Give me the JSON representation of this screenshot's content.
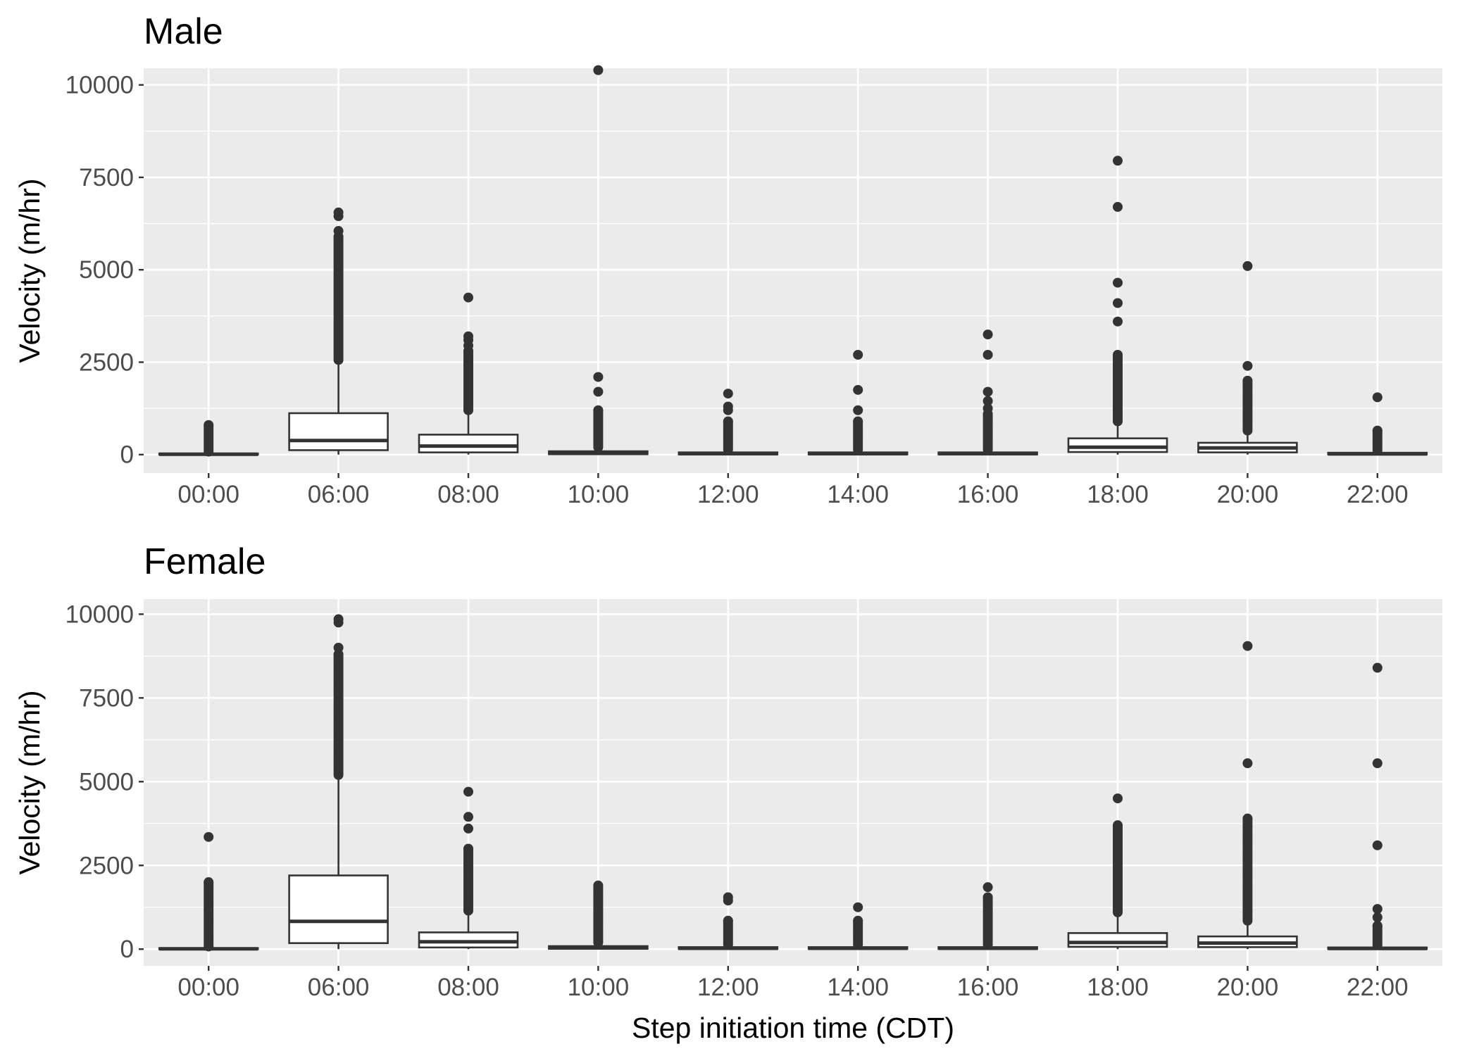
{
  "chart_data": [
    {
      "type": "boxplot",
      "title": "Male",
      "xlabel": "",
      "ylabel": "Velocity (m/hr)",
      "ylim": [
        -500,
        10450
      ],
      "yticks": [
        0,
        2500,
        5000,
        7500,
        10000
      ],
      "grid": true,
      "categories": [
        "00:00",
        "06:00",
        "08:00",
        "10:00",
        "12:00",
        "14:00",
        "16:00",
        "18:00",
        "20:00",
        "22:00"
      ],
      "boxes": [
        {
          "q1": 0,
          "median": 10,
          "q3": 30,
          "whisker_low": 0,
          "whisker_high": 60,
          "outlier_range": [
            80,
            800
          ],
          "outliers": []
        },
        {
          "q1": 120,
          "median": 380,
          "q3": 1120,
          "whisker_low": 0,
          "whisker_high": 2500,
          "outlier_range": [
            2560,
            5900
          ],
          "outliers": [
            6050,
            6450,
            6550
          ]
        },
        {
          "q1": 60,
          "median": 230,
          "q3": 540,
          "whisker_low": 0,
          "whisker_high": 1150,
          "outlier_range": [
            1200,
            2800
          ],
          "outliers": [
            2950,
            3100,
            3200,
            4250
          ]
        },
        {
          "q1": 10,
          "median": 40,
          "q3": 90,
          "whisker_low": 0,
          "whisker_high": 180,
          "outlier_range": [
            200,
            1200
          ],
          "outliers": [
            1700,
            2100,
            10400
          ]
        },
        {
          "q1": 5,
          "median": 25,
          "q3": 60,
          "whisker_low": 0,
          "whisker_high": 120,
          "outlier_range": [
            140,
            900
          ],
          "outliers": [
            1200,
            1300,
            1650
          ]
        },
        {
          "q1": 5,
          "median": 25,
          "q3": 60,
          "whisker_low": 0,
          "whisker_high": 120,
          "outlier_range": [
            140,
            900
          ],
          "outliers": [
            1200,
            1750,
            2700
          ]
        },
        {
          "q1": 5,
          "median": 25,
          "q3": 60,
          "whisker_low": 0,
          "whisker_high": 120,
          "outlier_range": [
            140,
            1100
          ],
          "outliers": [
            1250,
            1450,
            1700,
            2700,
            3250
          ]
        },
        {
          "q1": 70,
          "median": 200,
          "q3": 440,
          "whisker_low": 0,
          "whisker_high": 850,
          "outlier_range": [
            900,
            2700
          ],
          "outliers": [
            3600,
            4100,
            4650,
            6700,
            7950
          ]
        },
        {
          "q1": 60,
          "median": 180,
          "q3": 320,
          "whisker_low": 0,
          "whisker_high": 600,
          "outlier_range": [
            650,
            2000
          ],
          "outliers": [
            2400,
            5100
          ]
        },
        {
          "q1": 5,
          "median": 20,
          "q3": 50,
          "whisker_low": 0,
          "whisker_high": 100,
          "outlier_range": [
            120,
            650
          ],
          "outliers": [
            1550
          ]
        }
      ]
    },
    {
      "type": "boxplot",
      "title": "Female",
      "xlabel": "Step initiation time (CDT)",
      "ylabel": "Velocity (m/hr)",
      "ylim": [
        -500,
        10450
      ],
      "yticks": [
        0,
        2500,
        5000,
        7500,
        10000
      ],
      "grid": true,
      "categories": [
        "00:00",
        "06:00",
        "08:00",
        "10:00",
        "12:00",
        "14:00",
        "16:00",
        "18:00",
        "20:00",
        "22:00"
      ],
      "boxes": [
        {
          "q1": 0,
          "median": 10,
          "q3": 30,
          "whisker_low": 0,
          "whisker_high": 60,
          "outlier_range": [
            80,
            2000
          ],
          "outliers": [
            3350
          ]
        },
        {
          "q1": 180,
          "median": 830,
          "q3": 2200,
          "whisker_low": 0,
          "whisker_high": 5100,
          "outlier_range": [
            5200,
            8800
          ],
          "outliers": [
            9000,
            9750,
            9850
          ]
        },
        {
          "q1": 50,
          "median": 220,
          "q3": 500,
          "whisker_low": 0,
          "whisker_high": 1100,
          "outlier_range": [
            1150,
            3000
          ],
          "outliers": [
            3600,
            3950,
            4700
          ]
        },
        {
          "q1": 10,
          "median": 40,
          "q3": 90,
          "whisker_low": 0,
          "whisker_high": 180,
          "outlier_range": [
            200,
            1900
          ],
          "outliers": []
        },
        {
          "q1": 5,
          "median": 25,
          "q3": 60,
          "whisker_low": 0,
          "whisker_high": 120,
          "outlier_range": [
            140,
            850
          ],
          "outliers": [
            1450,
            1550
          ]
        },
        {
          "q1": 5,
          "median": 25,
          "q3": 60,
          "whisker_low": 0,
          "whisker_high": 120,
          "outlier_range": [
            140,
            850
          ],
          "outliers": [
            1250
          ]
        },
        {
          "q1": 5,
          "median": 25,
          "q3": 60,
          "whisker_low": 0,
          "whisker_high": 120,
          "outlier_range": [
            140,
            1550
          ],
          "outliers": [
            1850
          ]
        },
        {
          "q1": 70,
          "median": 200,
          "q3": 480,
          "whisker_low": 0,
          "whisker_high": 1050,
          "outlier_range": [
            1100,
            3700
          ],
          "outliers": [
            4500
          ]
        },
        {
          "q1": 60,
          "median": 180,
          "q3": 380,
          "whisker_low": 0,
          "whisker_high": 800,
          "outlier_range": [
            850,
            3900
          ],
          "outliers": [
            5550,
            9050
          ]
        },
        {
          "q1": 5,
          "median": 20,
          "q3": 50,
          "whisker_low": 0,
          "whisker_high": 100,
          "outlier_range": [
            120,
            700
          ],
          "outliers": [
            950,
            1200,
            3100,
            5550,
            8400
          ]
        }
      ]
    }
  ]
}
